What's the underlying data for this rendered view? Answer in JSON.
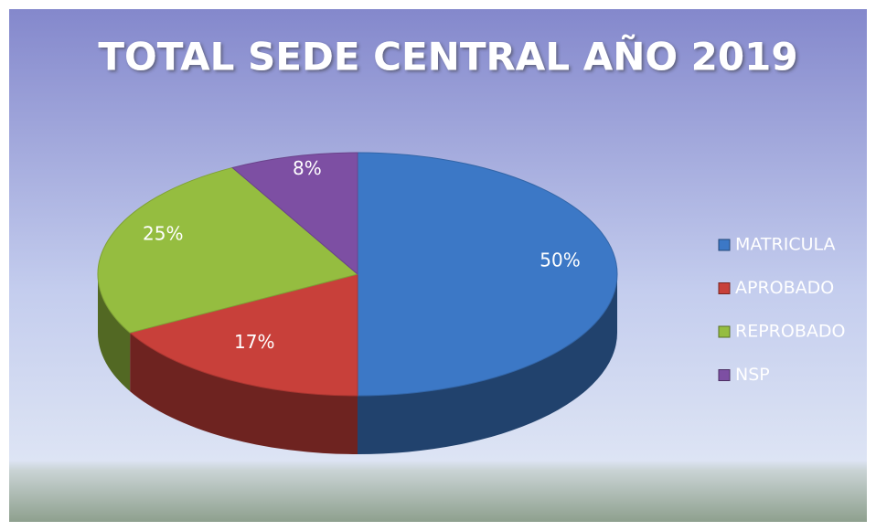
{
  "chart_data": {
    "type": "pie",
    "title": "TOTAL SEDE CENTRAL AÑO 2019",
    "categories": [
      "MATRICULA",
      "APROBADO",
      "REPROBADO",
      "NSP"
    ],
    "values": [
      50,
      17,
      25,
      8
    ],
    "value_labels": [
      "50%",
      "17%",
      "25%",
      "8%"
    ],
    "colors": [
      "#3c78c6",
      "#c8403a",
      "#95bd40",
      "#7d4fa3"
    ],
    "legend": "right"
  }
}
